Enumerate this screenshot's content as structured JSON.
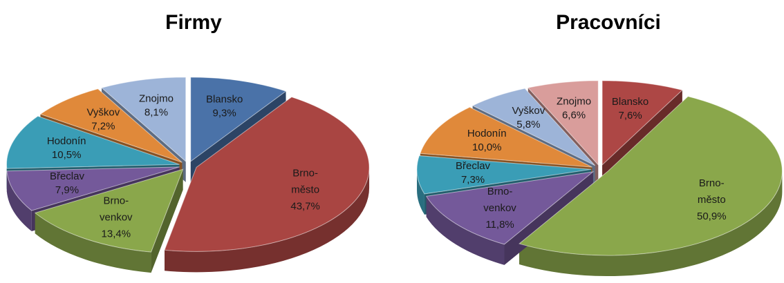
{
  "chart_data": [
    {
      "type": "pie",
      "title": "Firmy",
      "categories": [
        "Blansko",
        "Brno-město",
        "Brno-venkov",
        "Břeclav",
        "Hodonín",
        "Vyškov",
        "Znojmo"
      ],
      "values": [
        9.3,
        43.7,
        13.4,
        7.9,
        10.5,
        7.2,
        8.1
      ],
      "value_labels": [
        "9,3%",
        "43,7%",
        "13,4%",
        "7,9%",
        "10,5%",
        "7,2%",
        "8,1%"
      ],
      "colors": [
        "#4a72a8",
        "#a94542",
        "#8aa74b",
        "#74599a",
        "#3a9db6",
        "#e0893a",
        "#9db4d8"
      ]
    },
    {
      "type": "pie",
      "title": "Pracovníci",
      "categories": [
        "Blansko",
        "Brno-město",
        "Brno-venkov",
        "Břeclav",
        "Hodonín",
        "Vyškov",
        "Znojmo"
      ],
      "values": [
        7.6,
        50.9,
        11.8,
        7.3,
        10.0,
        5.8,
        6.6
      ],
      "value_labels": [
        "7,6%",
        "50,9%",
        "11,8%",
        "7,3%",
        "10,0%",
        "5,8%",
        "6,6%"
      ],
      "colors": [
        "#ad4745",
        "#8aa74b",
        "#74599a",
        "#3a9db6",
        "#e0893a",
        "#9db4d8",
        "#d99d9b"
      ]
    }
  ]
}
